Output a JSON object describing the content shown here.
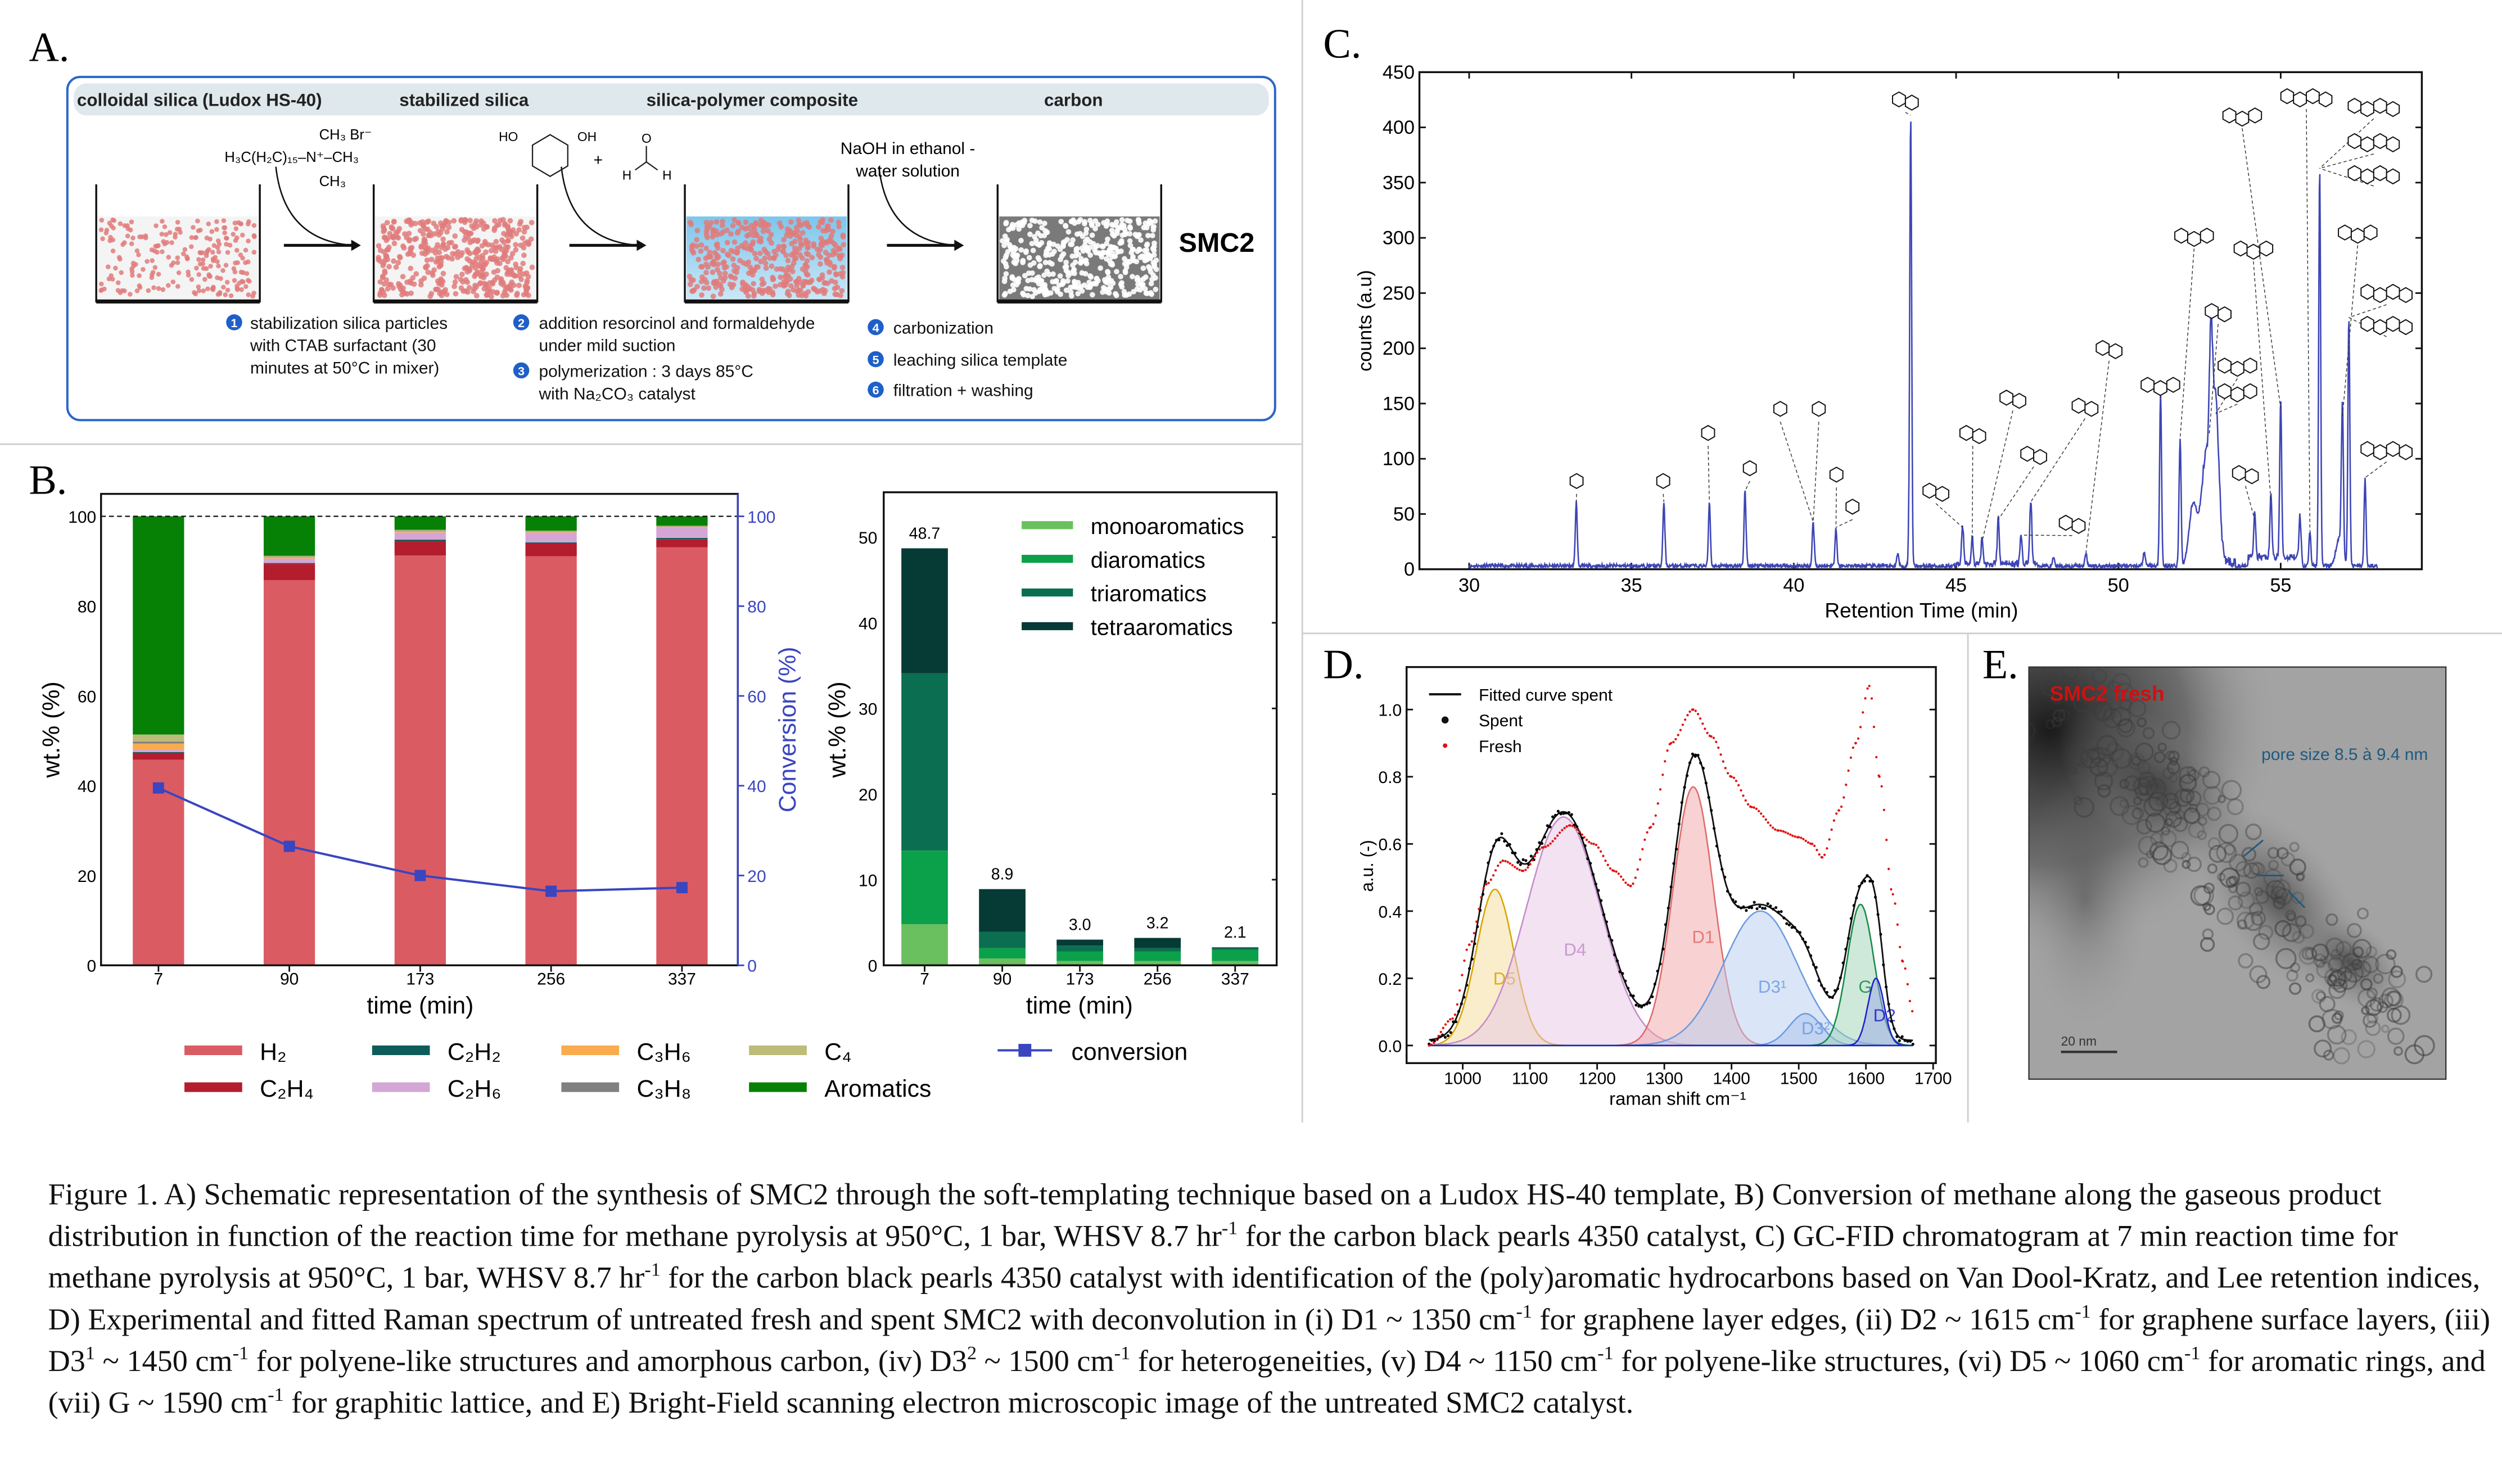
{
  "panel_a": {
    "label": "A.",
    "headers": [
      "colloidal silica (Ludox HS-40)",
      "stabilized silica",
      "silica-polymer composite",
      "carbon"
    ],
    "ctab": {
      "top": "CH₃  Br⁻",
      "middle": "H₃C(H₂C)₁₅–N⁺–CH₃",
      "bottom": "CH₃"
    },
    "resorcinol": {
      "ho": "HO",
      "oh": "OH"
    },
    "plus": "+",
    "formaldehyde": {
      "o": "O",
      "h1": "H",
      "h2": "H"
    },
    "naoh": [
      "NaOH in ethanol -",
      "water solution"
    ],
    "product": "SMC2",
    "steps": [
      {
        "num": "1",
        "lines": [
          "stabilization silica particles",
          "with CTAB surfactant (30",
          "minutes at 50°C in mixer)"
        ]
      },
      {
        "num": "2",
        "lines": [
          "addition resorcinol and formaldehyde",
          "under mild suction"
        ]
      },
      {
        "num": "3",
        "lines": [
          "polymerization : 3 days 85°C",
          "with Na₂CO₃ catalyst"
        ]
      },
      {
        "num": "4",
        "lines": [
          "carbonization"
        ]
      },
      {
        "num": "5",
        "lines": [
          "leaching silica template"
        ]
      },
      {
        "num": "6",
        "lines": [
          "filtration + washing"
        ]
      }
    ],
    "colors": {
      "frame": "#2a66c8",
      "silica": "#e07b7b",
      "polymer": "#8fd0ef",
      "carbon": "#7a7a7a",
      "step_badge": "#1f5fc8"
    }
  },
  "panel_labels": {
    "b": "B.",
    "c": "C.",
    "d": "D.",
    "e": "E."
  },
  "chart_data": [
    {
      "id": "B-left",
      "type": "bar",
      "stacked": true,
      "categories": [
        "7",
        "90",
        "173",
        "256",
        "337"
      ],
      "xlabel": "time (min)",
      "ylabel": "wt.% (%)",
      "y2label": "Conversion (%)",
      "ylim": [
        0,
        105
      ],
      "yticks": [
        0,
        20,
        40,
        60,
        80,
        100
      ],
      "reference_line": 100,
      "series": [
        {
          "name": "H₂",
          "color": "#db5b63",
          "values": [
            45.8,
            85.8,
            91.3,
            91.1,
            93.1
          ]
        },
        {
          "name": "C₂H₄",
          "color": "#b31d2d",
          "values": [
            1.5,
            3.6,
            3.2,
            2.9,
            1.8
          ]
        },
        {
          "name": "C₂H₂",
          "color": "#0e5c5a",
          "values": [
            0.2,
            0.2,
            0.3,
            0.2,
            0.3
          ]
        },
        {
          "name": "C₂H₆",
          "color": "#d4a6d6",
          "values": [
            0.6,
            1.0,
            1.6,
            2.2,
            2.4
          ]
        },
        {
          "name": "C₃H₆",
          "color": "#f9ab4e",
          "values": [
            1.3,
            0.3,
            0.3,
            0.2,
            0.1
          ]
        },
        {
          "name": "C₃H₈",
          "color": "#808080",
          "values": [
            0.4,
            0.1,
            0.1,
            0.1,
            0.1
          ]
        },
        {
          "name": "C₄",
          "color": "#bcbc78",
          "values": [
            1.6,
            0.2,
            0.2,
            0.1,
            0.1
          ]
        },
        {
          "name": "Aromatics",
          "color": "#068106",
          "values": [
            48.6,
            8.8,
            3.0,
            3.2,
            2.1
          ]
        }
      ],
      "line_series": {
        "name": "conversion",
        "color": "#3a45c0",
        "axis": "right",
        "values": [
          39.5,
          26.5,
          20.0,
          16.5,
          17.3
        ]
      }
    },
    {
      "id": "B-right",
      "type": "bar",
      "stacked": true,
      "categories": [
        "7",
        "90",
        "173",
        "256",
        "337"
      ],
      "xlabel": "time (min)",
      "ylabel": "wt.% (%)",
      "ylim": [
        0,
        55
      ],
      "yticks": [
        0,
        10,
        20,
        30,
        40,
        50
      ],
      "legend": "top-right",
      "totals": [
        "48.7",
        "8.9",
        "3.0",
        "3.2",
        "2.1"
      ],
      "series": [
        {
          "name": "monoaromatics",
          "color": "#6abf5e",
          "values": [
            4.8,
            0.8,
            0.5,
            0.5,
            0.5
          ]
        },
        {
          "name": "diaromatics",
          "color": "#0aa14a",
          "values": [
            8.6,
            1.2,
            1.1,
            1.1,
            1.3
          ]
        },
        {
          "name": "triaromatics",
          "color": "#0b6e50",
          "values": [
            20.7,
            1.9,
            0.7,
            0.4,
            0.2
          ]
        },
        {
          "name": "tetraaromatics",
          "color": "#063a34",
          "values": [
            14.6,
            5.0,
            0.7,
            1.2,
            0.1
          ]
        }
      ]
    },
    {
      "id": "C",
      "type": "line",
      "xlabel": "Retention Time (min)",
      "ylabel": "counts (a.u)",
      "xlim": [
        28.5,
        59.3
      ],
      "ylim": [
        0,
        450
      ],
      "xticks": [
        30,
        35,
        40,
        45,
        50,
        55
      ],
      "yticks": [
        0,
        50,
        100,
        150,
        200,
        250,
        300,
        350,
        400,
        450
      ],
      "color": "#3d45b5",
      "baseline": 3,
      "x_start": 30,
      "x_end": 58,
      "peaks": [
        {
          "t": 33.3,
          "counts": 58,
          "width": 0.03
        },
        {
          "t": 36.0,
          "counts": 58,
          "width": 0.03
        },
        {
          "t": 37.4,
          "counts": 58,
          "width": 0.03
        },
        {
          "t": 38.5,
          "counts": 68,
          "width": 0.03
        },
        {
          "t": 40.6,
          "counts": 40,
          "width": 0.03
        },
        {
          "t": 41.3,
          "counts": 35,
          "width": 0.03
        },
        {
          "t": 43.2,
          "counts": 12,
          "width": 0.03
        },
        {
          "t": 43.6,
          "counts": 408,
          "width": 0.03
        },
        {
          "t": 45.2,
          "counts": 35,
          "width": 0.03
        },
        {
          "t": 45.5,
          "counts": 25,
          "width": 0.03
        },
        {
          "t": 45.8,
          "counts": 22,
          "width": 0.03
        },
        {
          "t": 46.3,
          "counts": 42,
          "width": 0.03
        },
        {
          "t": 47.0,
          "counts": 28,
          "width": 0.03
        },
        {
          "t": 47.3,
          "counts": 58,
          "width": 0.03
        },
        {
          "t": 48.0,
          "counts": 8,
          "width": 0.03
        },
        {
          "t": 49.0,
          "counts": 12,
          "width": 0.03
        },
        {
          "t": 50.8,
          "counts": 12,
          "width": 0.04
        },
        {
          "t": 51.3,
          "counts": 156,
          "width": 0.03
        },
        {
          "t": 51.9,
          "counts": 115,
          "width": 0.03
        },
        {
          "t": 52.3,
          "counts": 55,
          "width": 0.12
        },
        {
          "t": 52.7,
          "counts": 95,
          "width": 0.15
        },
        {
          "t": 52.85,
          "counts": 120,
          "width": 0.05
        },
        {
          "t": 53.0,
          "counts": 138,
          "width": 0.1
        },
        {
          "t": 54.2,
          "counts": 42,
          "width": 0.03
        },
        {
          "t": 54.7,
          "counts": 58,
          "width": 0.03
        },
        {
          "t": 55.0,
          "counts": 143,
          "width": 0.03
        },
        {
          "t": 55.6,
          "counts": 42,
          "width": 0.03
        },
        {
          "t": 55.9,
          "counts": 32,
          "width": 0.03
        },
        {
          "t": 56.2,
          "counts": 360,
          "width": 0.03
        },
        {
          "t": 56.8,
          "counts": 25,
          "width": 0.1
        },
        {
          "t": 56.9,
          "counts": 135,
          "width": 0.03
        },
        {
          "t": 57.1,
          "counts": 225,
          "width": 0.03
        },
        {
          "t": 57.6,
          "counts": 80,
          "width": 0.03
        }
      ]
    },
    {
      "id": "D",
      "type": "line",
      "xlabel": "raman shift cm⁻¹",
      "ylabel": "a.u. (-)",
      "xlim": [
        916,
        1704
      ],
      "ylim": [
        -0.053,
        1.127
      ],
      "xticks": [
        1000,
        1100,
        1200,
        1300,
        1400,
        1500,
        1600,
        1700
      ],
      "yticks": [
        "0.0",
        "0.2",
        "0.4",
        "0.6",
        "0.8",
        "1.0"
      ],
      "legend": "top-left",
      "legend_entries": [
        "Fitted curve spent",
        "Spent",
        "Fresh"
      ],
      "range": [
        950,
        1670
      ],
      "components": [
        {
          "name": "D5",
          "center": 1048,
          "amplitude": 0.465,
          "sigma": 28,
          "color": "#d9a400",
          "fill": "#f5dc9a"
        },
        {
          "name": "D4",
          "center": 1150,
          "amplitude": 0.68,
          "sigma": 55,
          "color": "#c48ec8",
          "fill": "#e6c6e6"
        },
        {
          "name": "D1",
          "center": 1343,
          "amplitude": 0.77,
          "sigma": 30,
          "color": "#e06b6b",
          "fill": "#f2a6a6"
        },
        {
          "name": "D3¹",
          "center": 1443,
          "amplitude": 0.4,
          "sigma": 55,
          "color": "#6e9be0",
          "fill": "#b6cdf0"
        },
        {
          "name": "D3²",
          "center": 1510,
          "amplitude": 0.095,
          "sigma": 24,
          "color": "#6e9be0",
          "fill": "#a9c2ee"
        },
        {
          "name": "G",
          "center": 1592,
          "amplitude": 0.42,
          "sigma": 20,
          "color": "#1a8a4a",
          "fill": "#9ed3b4"
        },
        {
          "name": "D2",
          "center": 1615,
          "amplitude": 0.2,
          "sigma": 12,
          "color": "#2020d0",
          "fill": "#9aa8e6"
        }
      ],
      "fresh": {
        "color": "#e01010",
        "points": [
          [
            950,
            0.0
          ],
          [
            985,
            0.08
          ],
          [
            1010,
            0.3
          ],
          [
            1035,
            0.48
          ],
          [
            1060,
            0.55
          ],
          [
            1090,
            0.52
          ],
          [
            1120,
            0.59
          ],
          [
            1160,
            0.655
          ],
          [
            1195,
            0.6
          ],
          [
            1225,
            0.52
          ],
          [
            1250,
            0.475
          ],
          [
            1280,
            0.65
          ],
          [
            1310,
            0.9
          ],
          [
            1343,
            1.0
          ],
          [
            1370,
            0.92
          ],
          [
            1400,
            0.8
          ],
          [
            1430,
            0.71
          ],
          [
            1470,
            0.64
          ],
          [
            1500,
            0.62
          ],
          [
            1520,
            0.6
          ],
          [
            1535,
            0.56
          ],
          [
            1560,
            0.7
          ],
          [
            1585,
            0.9
          ],
          [
            1605,
            1.07
          ],
          [
            1620,
            0.8
          ],
          [
            1640,
            0.45
          ],
          [
            1655,
            0.25
          ],
          [
            1670,
            0.1
          ]
        ]
      },
      "spent_color": "#000000"
    }
  ],
  "legend_b": {
    "items": [
      "H₂",
      "C₂H₂",
      "C₃H₆",
      "C₄",
      "C₂H₄",
      "C₂H₆",
      "C₃H₈",
      "Aromatics"
    ],
    "conversion": "conversion"
  },
  "panel_e": {
    "title": "SMC2 fresh",
    "annotation": "pore size 8.5 à 9.4 nm",
    "scale_bar": "20  nm",
    "title_color": "#d01010",
    "annotation_color": "#1e5a80"
  },
  "caption": {
    "parts": [
      {
        "t": "Figure 1. A) Schematic representation of the synthesis of SMC2 through the soft-templating technique based on a Ludox HS-40 template, B) Conversion of methane along the gaseous product distribution in function of the reaction time for methane pyrolysis at 950°C, 1 bar, WHSV 8.7 hr"
      },
      {
        "t": "-1",
        "sup": true
      },
      {
        "t": " for the carbon black pearls 4350 catalyst, C) GC-FID chromatogram at 7 min reaction time for methane pyrolysis at 950°C, 1 bar, WHSV 8.7 hr"
      },
      {
        "t": "-1",
        "sup": true
      },
      {
        "t": " for the carbon black pearls 4350 catalyst with identification of the (poly)aromatic hydrocarbons based on Van Dool-Kratz, and Lee retention indices, D) Experimental and fitted Raman spectrum of untreated fresh and spent SMC2 with deconvolution in (i) D1 ~ 1350 cm"
      },
      {
        "t": "-1",
        "sup": true
      },
      {
        "t": " for graphene layer edges, (ii) D2 ~ 1615 cm"
      },
      {
        "t": "-1",
        "sup": true
      },
      {
        "t": " for graphene surface layers, (iii) D3"
      },
      {
        "t": "1",
        "sup": true
      },
      {
        "t": " ~ 1450 cm"
      },
      {
        "t": "-1",
        "sup": true
      },
      {
        "t": " for polyene-like structures and amorphous carbon, (iv) D3"
      },
      {
        "t": "2",
        "sup": true
      },
      {
        "t": " ~ 1500 cm"
      },
      {
        "t": "-1",
        "sup": true
      },
      {
        "t": " for heterogeneities, (v) D4 ~ 1150 cm"
      },
      {
        "t": "-1",
        "sup": true
      },
      {
        "t": " for polyene-like structures, (vi) D5 ~ 1060 cm"
      },
      {
        "t": "-1",
        "sup": true
      },
      {
        "t": " for aromatic rings, and (vii) G ~ 1590 cm"
      },
      {
        "t": "-1",
        "sup": true
      },
      {
        "t": " for graphitic lattice, and E) Bright-Field scanning electron microscopic image of the untreated SMC2 catalyst."
      }
    ]
  }
}
